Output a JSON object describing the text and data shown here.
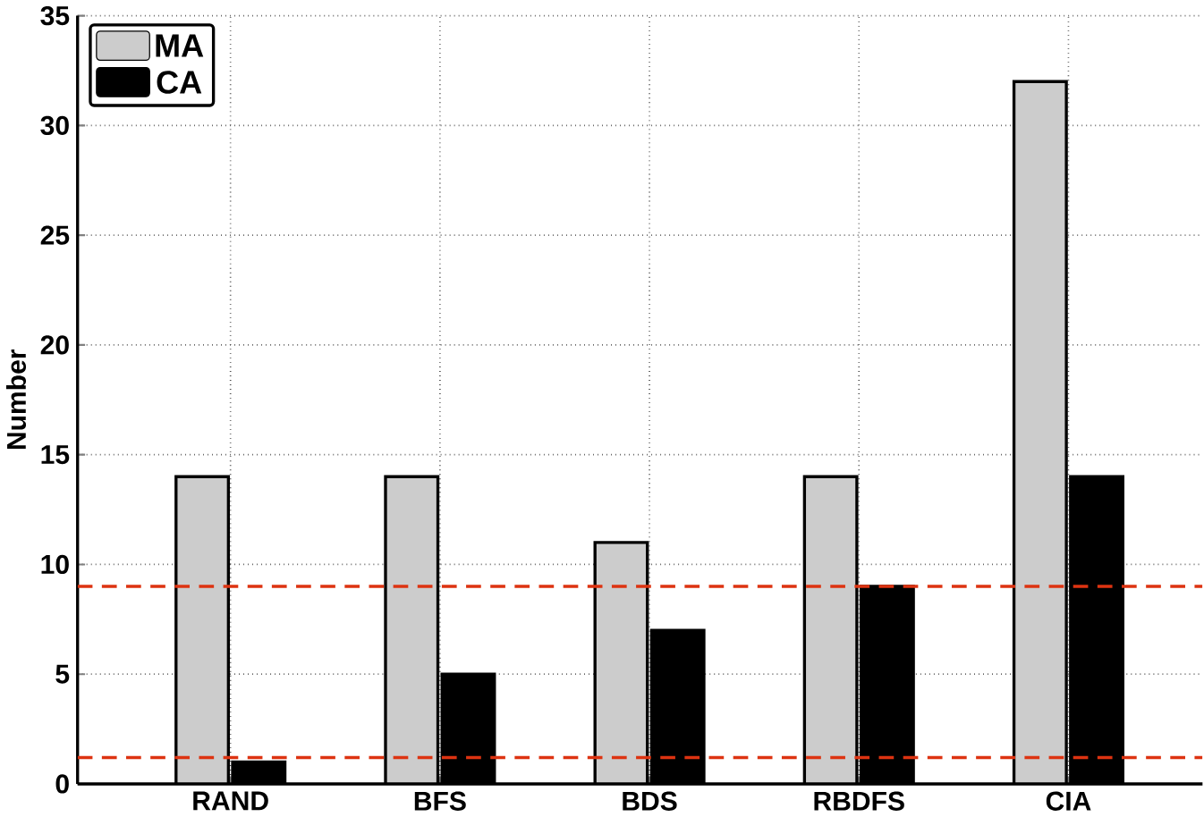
{
  "chart_data": {
    "type": "bar",
    "ylabel": "Number",
    "categories": [
      "RAND",
      "BFS",
      "BDS",
      "RBDFS",
      "CIA"
    ],
    "series": [
      {
        "name": "MA",
        "color": "#cccccc",
        "values": [
          14,
          14,
          11,
          14,
          32
        ]
      },
      {
        "name": "CA",
        "color": "#000000",
        "values": [
          1,
          5,
          7,
          9,
          14
        ]
      }
    ],
    "ylim": [
      0,
      35
    ],
    "yticks": [
      0,
      5,
      10,
      15,
      20,
      25,
      30,
      35
    ],
    "ref_lines": [
      {
        "axis": "y",
        "value": 9,
        "color": "#dd3311",
        "line_style": "dashed"
      },
      {
        "axis": "y",
        "value": 1.2,
        "color": "#dd3311",
        "line_style": "dashed"
      }
    ],
    "grid": true,
    "legend": "top left"
  }
}
